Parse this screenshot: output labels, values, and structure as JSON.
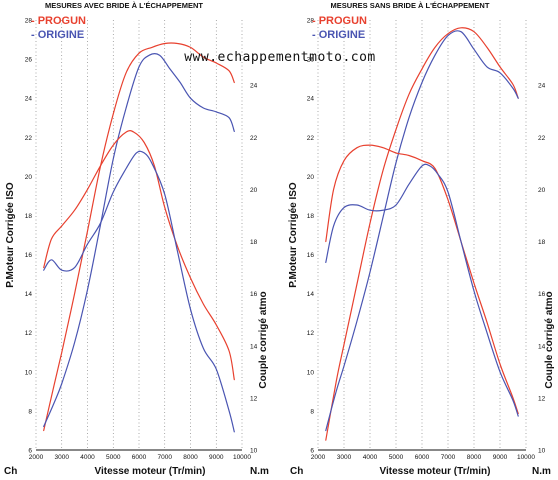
{
  "watermark": "www.echappementmoto.com",
  "colors": {
    "progun": "#e8412f",
    "origine": "#4a55b2",
    "axis": "#111111",
    "grid": "#000000"
  },
  "chart_data": [
    {
      "type": "line",
      "title": "MESURES AVEC BRIDE À L'ÉCHAPPEMENT",
      "legend": [
        "- PROGUN",
        "- ORIGINE"
      ],
      "legend_position": "top-left",
      "xlabel": "Vitesse moteur (Tr/min)",
      "ylabel_left": "P.Moteur Corrigée ISO",
      "ylabel_right": "Couple corrigé atmo",
      "unit_left": "Ch",
      "unit_right": "N.m",
      "xlim": [
        2000,
        10000
      ],
      "xticks": [
        "2000",
        "3000",
        "4000",
        "5000",
        "6000",
        "7000",
        "8000",
        "9000",
        "10000"
      ],
      "ylim_left": [
        6,
        28
      ],
      "yticks_left": [
        "6",
        "8",
        "10",
        "12",
        "14",
        "16",
        "18",
        "20",
        "22",
        "24",
        "26",
        "28"
      ],
      "ylim_right": [
        10,
        26.5
      ],
      "yticks_right": [
        "10",
        "12",
        "14",
        "16",
        "18",
        "20",
        "22",
        "24"
      ],
      "series": [
        {
          "name": "- PROGUN",
          "quantity": "power",
          "axis": "left",
          "x": [
            2300,
            2700,
            3000,
            3500,
            4000,
            4500,
            5000,
            5500,
            6000,
            6500,
            7000,
            7500,
            8000,
            8500,
            9000,
            9500,
            9700
          ],
          "y": [
            7.0,
            9.3,
            11.0,
            14.0,
            17.2,
            20.5,
            23.2,
            25.3,
            26.3,
            26.6,
            26.8,
            26.8,
            26.6,
            26.1,
            25.8,
            25.4,
            24.8
          ]
        },
        {
          "name": "- ORIGINE",
          "quantity": "power",
          "axis": "left",
          "x": [
            2300,
            2700,
            3000,
            3500,
            4000,
            4500,
            5000,
            5500,
            6000,
            6400,
            6800,
            7200,
            7600,
            8000,
            8500,
            9000,
            9500,
            9700
          ],
          "y": [
            7.2,
            8.4,
            9.4,
            11.5,
            14.2,
            17.5,
            20.9,
            23.5,
            25.6,
            26.2,
            26.2,
            25.5,
            24.8,
            24.0,
            23.5,
            23.3,
            23.0,
            22.3
          ]
        },
        {
          "name": "- PROGUN",
          "quantity": "torque",
          "axis": "right",
          "x": [
            2300,
            2600,
            3000,
            3500,
            4000,
            4500,
            5000,
            5500,
            5800,
            6200,
            6600,
            7000,
            7500,
            8000,
            8500,
            9000,
            9500,
            9700
          ],
          "y": [
            17.0,
            18.1,
            18.6,
            19.2,
            20.0,
            20.9,
            21.7,
            22.2,
            22.2,
            21.8,
            20.9,
            19.3,
            17.8,
            16.6,
            15.6,
            14.8,
            13.8,
            12.7
          ]
        },
        {
          "name": "- ORIGINE",
          "quantity": "torque",
          "axis": "right",
          "x": [
            2300,
            2600,
            3000,
            3500,
            4000,
            4500,
            5000,
            5500,
            5900,
            6200,
            6500,
            7000,
            7500,
            8000,
            8500,
            9000,
            9500,
            9700
          ],
          "y": [
            16.9,
            17.3,
            16.9,
            17.0,
            17.9,
            18.7,
            19.9,
            20.8,
            21.4,
            21.4,
            21.0,
            19.8,
            17.6,
            15.4,
            13.9,
            13.1,
            11.5,
            10.7
          ]
        }
      ]
    },
    {
      "type": "line",
      "title": "MESURES SANS BRIDE À L'ÉCHAPPEMENT",
      "legend": [
        "- PROGUN",
        "- ORIGINE"
      ],
      "legend_position": "top-left",
      "xlabel": "Vitesse moteur (Tr/min)",
      "ylabel_left": "P.Moteur Corrigée ISO",
      "ylabel_right": "Couple corrigé atmo",
      "unit_left": "Ch",
      "unit_right": "N.m",
      "xlim": [
        2000,
        10000
      ],
      "xticks": [
        "2000",
        "3000",
        "4000",
        "5000",
        "6000",
        "7000",
        "8000",
        "9000",
        "10000"
      ],
      "ylim_left": [
        6,
        28
      ],
      "yticks_left": [
        "6",
        "8",
        "10",
        "12",
        "14",
        "16",
        "18",
        "20",
        "22",
        "24",
        "26",
        "28"
      ],
      "ylim_right": [
        10,
        26.5
      ],
      "yticks_right": [
        "10",
        "12",
        "14",
        "16",
        "18",
        "20",
        "22",
        "24"
      ],
      "series": [
        {
          "name": "- PROGUN",
          "quantity": "power",
          "axis": "left",
          "x": [
            2300,
            2700,
            3000,
            3500,
            4000,
            4500,
            5000,
            5500,
            6000,
            6500,
            7000,
            7500,
            8000,
            8500,
            9000,
            9500,
            9700
          ],
          "y": [
            6.5,
            9.5,
            11.4,
            14.5,
            17.6,
            20.3,
            22.4,
            24.2,
            25.5,
            26.6,
            27.3,
            27.6,
            27.4,
            26.6,
            25.6,
            24.7,
            24.0
          ]
        },
        {
          "name": "- ORIGINE",
          "quantity": "power",
          "axis": "left",
          "x": [
            2300,
            2700,
            3000,
            3500,
            4000,
            4500,
            5000,
            5500,
            6000,
            6500,
            7000,
            7500,
            8000,
            8500,
            9000,
            9500,
            9700
          ],
          "y": [
            7.0,
            9.0,
            10.3,
            12.6,
            15.1,
            17.9,
            20.7,
            23.0,
            24.8,
            26.2,
            27.2,
            27.4,
            26.5,
            25.6,
            25.3,
            24.5,
            24.0
          ]
        },
        {
          "name": "- PROGUN",
          "quantity": "torque",
          "axis": "right",
          "x": [
            2300,
            2600,
            3000,
            3500,
            4000,
            4500,
            5000,
            5500,
            6000,
            6500,
            7000,
            7500,
            8000,
            8500,
            9000,
            9500,
            9700
          ],
          "y": [
            18.0,
            20.0,
            21.1,
            21.6,
            21.7,
            21.6,
            21.4,
            21.3,
            21.1,
            20.8,
            19.6,
            18.0,
            16.4,
            14.9,
            13.3,
            12.0,
            11.4
          ]
        },
        {
          "name": "- ORIGINE",
          "quantity": "torque",
          "axis": "right",
          "x": [
            2300,
            2600,
            3000,
            3500,
            4000,
            4500,
            5000,
            5500,
            6000,
            6300,
            6600,
            7000,
            7500,
            8000,
            8500,
            9000,
            9500,
            9700
          ],
          "y": [
            17.2,
            18.6,
            19.3,
            19.4,
            19.2,
            19.2,
            19.4,
            20.2,
            20.9,
            20.9,
            20.6,
            19.9,
            18.0,
            16.1,
            14.5,
            13.0,
            11.9,
            11.3
          ]
        }
      ]
    }
  ]
}
